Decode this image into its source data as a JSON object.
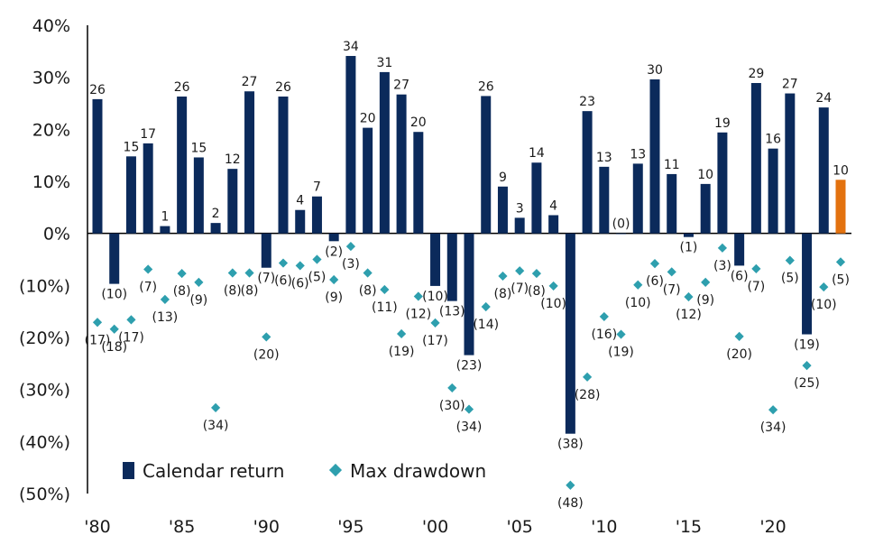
{
  "chart_data": {
    "type": "bar",
    "title": "",
    "xlabel": "",
    "ylabel": "",
    "ylim": [
      -50,
      40
    ],
    "y_ticks": [
      40,
      30,
      20,
      10,
      0,
      -10,
      -20,
      -30,
      -40,
      -50
    ],
    "y_tick_labels": [
      "40%",
      "30%",
      "20%",
      "10%",
      "0%",
      "(10%)",
      "(20%)",
      "(30%)",
      "(40%)",
      "(50%)"
    ],
    "x_tick_years": [
      1980,
      1985,
      1990,
      1995,
      2000,
      2005,
      2010,
      2015,
      2020
    ],
    "x_tick_labels": [
      "'80",
      "'85",
      "'90",
      "'95",
      "'00",
      "'05",
      "'10",
      "'15",
      "'20"
    ],
    "categories": [
      1980,
      1981,
      1982,
      1983,
      1984,
      1985,
      1986,
      1987,
      1988,
      1989,
      1990,
      1991,
      1992,
      1993,
      1994,
      1995,
      1996,
      1997,
      1998,
      1999,
      2000,
      2001,
      2002,
      2003,
      2004,
      2005,
      2006,
      2007,
      2008,
      2009,
      2010,
      2011,
      2012,
      2013,
      2014,
      2015,
      2016,
      2017,
      2018,
      2019,
      2020,
      2021,
      2022,
      2023,
      2024
    ],
    "series": [
      {
        "name": "Calendar return",
        "kind": "bar",
        "color": "#0b2a5b",
        "highlight_color": "#e3720f",
        "highlight_index": 44,
        "values": [
          25.8,
          -9.7,
          14.8,
          17.3,
          1.4,
          26.3,
          14.6,
          2.0,
          12.4,
          27.3,
          -6.6,
          26.3,
          4.5,
          7.1,
          -1.5,
          34.1,
          20.3,
          31.0,
          26.7,
          19.5,
          -10.1,
          -13.0,
          -23.4,
          26.4,
          9.0,
          3.0,
          13.6,
          3.5,
          -38.5,
          23.5,
          12.8,
          -0.0,
          13.4,
          29.6,
          11.4,
          -0.7,
          9.5,
          19.4,
          -6.2,
          28.9,
          16.3,
          26.9,
          -19.4,
          24.2,
          10.3
        ],
        "labels": [
          "26",
          "(10)",
          "15",
          "17",
          "1",
          "26",
          "15",
          "2",
          "12",
          "27",
          "(7)",
          "26",
          "4",
          "7",
          "(2)",
          "34",
          "20",
          "31",
          "27",
          "20",
          "(10)",
          "(13)",
          "(23)",
          "26",
          "9",
          "3",
          "14",
          "4",
          "(38)",
          "23",
          "13",
          "(0)",
          "13",
          "30",
          "11",
          "(1)",
          "10",
          "19",
          "(6)",
          "29",
          "16",
          "27",
          "(19)",
          "24",
          "10"
        ]
      },
      {
        "name": "Max drawdown",
        "kind": "scatter",
        "color": "#2e9fae",
        "values": [
          -17.1,
          -18.4,
          -16.6,
          -6.9,
          -12.7,
          -7.7,
          -9.4,
          -33.5,
          -7.6,
          -7.6,
          -19.9,
          -5.7,
          -6.2,
          -5.0,
          -8.9,
          -2.5,
          -7.6,
          -10.8,
          -19.3,
          -12.1,
          -17.2,
          -29.7,
          -33.8,
          -14.1,
          -8.2,
          -7.2,
          -7.7,
          -10.1,
          -48.4,
          -27.6,
          -16.0,
          -19.4,
          -9.9,
          -5.8,
          -7.4,
          -12.2,
          -9.4,
          -2.8,
          -19.8,
          -6.8,
          -33.9,
          -5.2,
          -25.4,
          -10.3,
          -5.5
        ],
        "labels": [
          "(17)",
          "(18)",
          "(17)",
          "(7)",
          "(13)",
          "(8)",
          "(9)",
          "(34)",
          "(8)",
          "(8)",
          "(20)",
          "(6)",
          "(6)",
          "(5)",
          "(9)",
          "(3)",
          "(8)",
          "(11)",
          "(19)",
          "(12)",
          "(17)",
          "(30)",
          "(34)",
          "(14)",
          "(8)",
          "(7)",
          "(8)",
          "(10)",
          "(48)",
          "(28)",
          "(16)",
          "(19)",
          "(10)",
          "(6)",
          "(7)",
          "(12)",
          "(9)",
          "(3)",
          "(20)",
          "(7)",
          "(34)",
          "(5)",
          "(25)",
          "(10)",
          "(5)"
        ]
      }
    ],
    "legend": {
      "placement": "bottom-left",
      "entries": [
        "Calendar return",
        "Max drawdown"
      ]
    },
    "grid": false
  }
}
